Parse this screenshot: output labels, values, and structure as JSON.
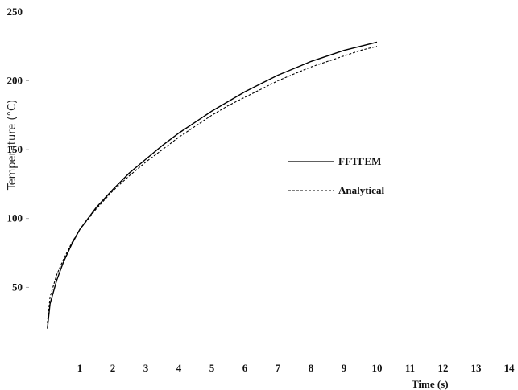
{
  "chart_data": {
    "type": "line",
    "xlabel": "Time (s)",
    "ylabel": "Temperature (°C)",
    "xlim": [
      0,
      14
    ],
    "ylim": [
      0,
      250
    ],
    "x_ticks": [
      1,
      2,
      3,
      4,
      5,
      6,
      7,
      8,
      9,
      10,
      11,
      12,
      13,
      14
    ],
    "y_ticks": [
      50,
      100,
      150,
      200,
      250
    ],
    "grid": false,
    "legend_position": "right",
    "series": [
      {
        "name": "FFTFEM",
        "style": "solid",
        "color": "#000000",
        "points": [
          [
            0.02,
            20
          ],
          [
            0.1,
            38
          ],
          [
            0.3,
            55
          ],
          [
            0.5,
            68
          ],
          [
            0.75,
            81
          ],
          [
            1.0,
            92
          ],
          [
            1.5,
            108
          ],
          [
            2.0,
            121
          ],
          [
            2.5,
            133
          ],
          [
            3.0,
            143
          ],
          [
            3.5,
            153
          ],
          [
            4.0,
            162
          ],
          [
            4.5,
            170
          ],
          [
            5.0,
            178
          ],
          [
            5.5,
            185
          ],
          [
            6.0,
            192
          ],
          [
            6.5,
            198
          ],
          [
            7.0,
            204
          ],
          [
            7.5,
            209
          ],
          [
            8.0,
            214
          ],
          [
            8.5,
            218
          ],
          [
            9.0,
            222
          ],
          [
            9.5,
            225
          ],
          [
            10.0,
            228
          ]
        ]
      },
      {
        "name": "Analytical",
        "style": "dashed",
        "color": "#000000",
        "points": [
          [
            0.02,
            24
          ],
          [
            0.1,
            43
          ],
          [
            0.3,
            59
          ],
          [
            0.5,
            70
          ],
          [
            0.75,
            82
          ],
          [
            1.0,
            92
          ],
          [
            1.5,
            107
          ],
          [
            2.0,
            120
          ],
          [
            2.5,
            131
          ],
          [
            3.0,
            141
          ],
          [
            3.5,
            150
          ],
          [
            4.0,
            159
          ],
          [
            4.5,
            167
          ],
          [
            5.0,
            175
          ],
          [
            5.5,
            182
          ],
          [
            6.0,
            188
          ],
          [
            6.5,
            194
          ],
          [
            7.0,
            200
          ],
          [
            7.5,
            205
          ],
          [
            8.0,
            210
          ],
          [
            8.5,
            214
          ],
          [
            9.0,
            218
          ],
          [
            9.5,
            222
          ],
          [
            10.0,
            225
          ]
        ]
      }
    ]
  }
}
